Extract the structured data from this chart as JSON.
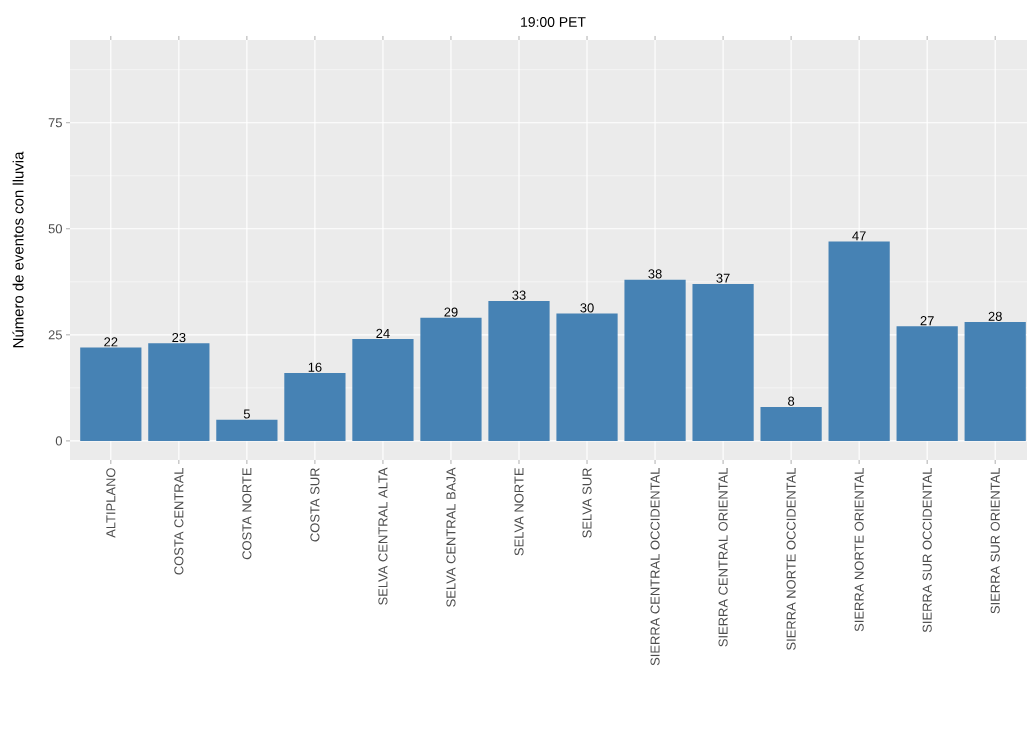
{
  "chart_data": {
    "type": "bar",
    "title": "19:00 PET",
    "ylabel": "Número de eventos con lluvia",
    "categories": [
      "ALTIPLANO",
      "COSTA CENTRAL",
      "COSTA NORTE",
      "COSTA SUR",
      "SELVA CENTRAL ALTA",
      "SELVA CENTRAL BAJA",
      "SELVA NORTE",
      "SELVA SUR",
      "SIERRA CENTRAL OCCIDENTAL",
      "SIERRA CENTRAL ORIENTAL",
      "SIERRA NORTE OCCIDENTAL",
      "SIERRA NORTE ORIENTAL",
      "SIERRA SUR OCCIDENTAL",
      "SIERRA SUR ORIENTAL"
    ],
    "values": [
      22,
      23,
      5,
      16,
      24,
      29,
      33,
      30,
      38,
      37,
      8,
      47,
      27,
      28
    ],
    "color": "#4682b4",
    "ylim": [
      -4.5,
      94.5
    ],
    "yticks": [
      0,
      25,
      50,
      75
    ],
    "grid": true,
    "data_labels": true
  }
}
